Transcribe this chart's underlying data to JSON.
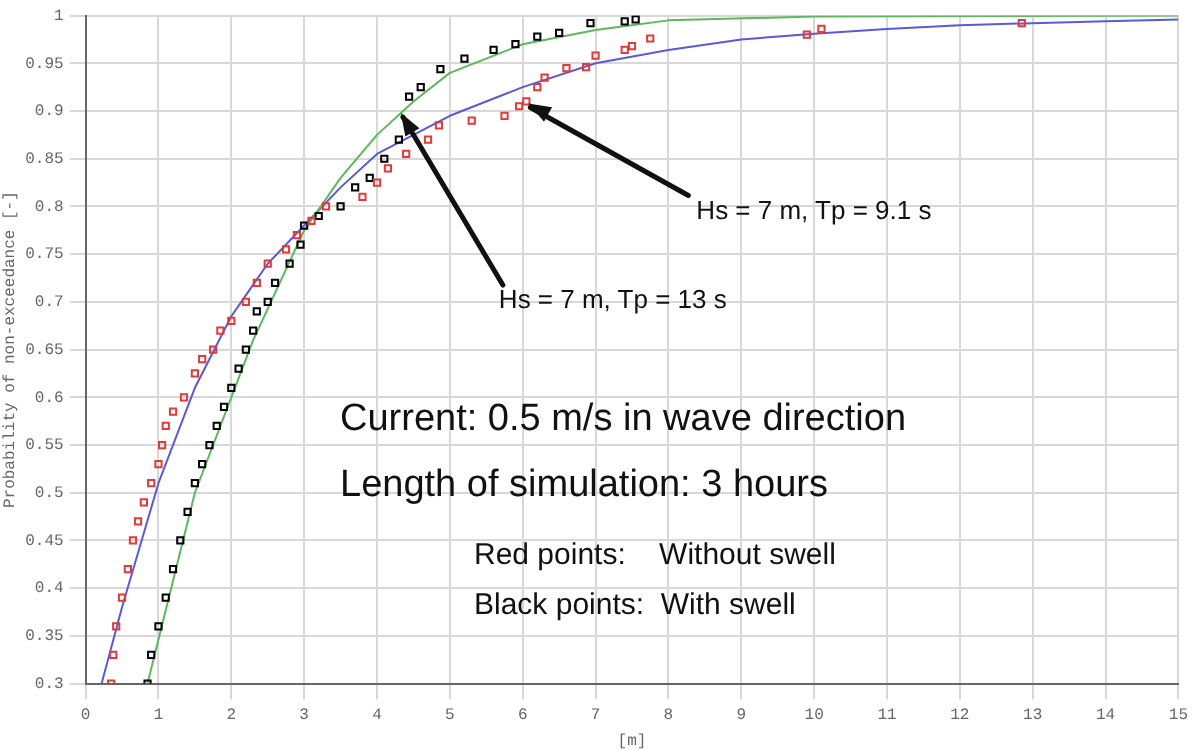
{
  "chart_data": {
    "type": "scatter",
    "xlabel": "[m]",
    "ylabel": "Probability of non-exceedance [-]",
    "xlim": [
      0,
      15
    ],
    "xticks": [
      0,
      1,
      2,
      3,
      4,
      5,
      6,
      7,
      8,
      9,
      10,
      11,
      12,
      13,
      14,
      15
    ],
    "ylim": [
      0.3,
      1
    ],
    "yticks": [
      0.3,
      0.35,
      0.4,
      0.45,
      0.5,
      0.55,
      0.6,
      0.65,
      0.7,
      0.75,
      0.8,
      0.85,
      0.9,
      0.95,
      1
    ],
    "grid": true,
    "marker": "square",
    "series": [
      {
        "color": "#e03a3a",
        "x": [
          0.35,
          0.38,
          0.42,
          0.5,
          0.58,
          0.65,
          0.72,
          0.8,
          0.9,
          1.0,
          1.05,
          1.1,
          1.2,
          1.35,
          1.5,
          1.6,
          1.75,
          1.85,
          2.0,
          2.2,
          2.35,
          2.5,
          2.75,
          2.9,
          3.1,
          3.3,
          3.8,
          4.0,
          4.15,
          4.4,
          4.7,
          4.85,
          5.3,
          5.75,
          5.95,
          6.05,
          6.2,
          6.3,
          6.6,
          6.87,
          7.0,
          7.4,
          7.5,
          7.75,
          9.9,
          10.1,
          12.85
        ],
        "values": [
          0.3,
          0.33,
          0.36,
          0.39,
          0.42,
          0.45,
          0.47,
          0.49,
          0.51,
          0.53,
          0.55,
          0.57,
          0.585,
          0.6,
          0.625,
          0.64,
          0.65,
          0.67,
          0.68,
          0.7,
          0.72,
          0.74,
          0.755,
          0.77,
          0.785,
          0.8,
          0.81,
          0.825,
          0.84,
          0.855,
          0.87,
          0.885,
          0.89,
          0.895,
          0.905,
          0.91,
          0.925,
          0.935,
          0.945,
          0.946,
          0.958,
          0.964,
          0.968,
          0.976,
          0.98,
          0.986,
          0.992
        ]
      },
      {
        "color": "#000000",
        "x": [
          0.85,
          0.9,
          1.0,
          1.1,
          1.2,
          1.3,
          1.4,
          1.5,
          1.6,
          1.7,
          1.8,
          1.9,
          2.0,
          2.1,
          2.2,
          2.3,
          2.35,
          2.5,
          2.6,
          2.8,
          2.95,
          3.0,
          3.2,
          3.5,
          3.7,
          3.9,
          4.1,
          4.3,
          4.35,
          4.44,
          4.6,
          4.87,
          5.2,
          5.6,
          5.9,
          6.2,
          6.5,
          6.93,
          7.4,
          7.55
        ],
        "values": [
          0.3,
          0.33,
          0.36,
          0.39,
          0.42,
          0.45,
          0.48,
          0.51,
          0.53,
          0.55,
          0.57,
          0.59,
          0.61,
          0.63,
          0.65,
          0.67,
          0.69,
          0.7,
          0.72,
          0.74,
          0.76,
          0.78,
          0.79,
          0.8,
          0.82,
          0.83,
          0.85,
          0.87,
          null,
          0.915,
          0.925,
          0.944,
          0.955,
          0.964,
          0.97,
          0.978,
          0.982,
          0.992,
          0.994,
          0.996
        ]
      },
      {
        "type": "line",
        "marker": "none",
        "color": "#5cb85c",
        "x": [
          0.85,
          1.5,
          2.3,
          3,
          3.5,
          4,
          4.5,
          5,
          6,
          7,
          8,
          10,
          15
        ],
        "values": [
          0.3,
          0.5,
          0.66,
          0.775,
          0.83,
          0.875,
          0.91,
          0.94,
          0.97,
          0.985,
          0.995,
          0.999,
          1
        ]
      },
      {
        "type": "line",
        "marker": "none",
        "color": "#5a5ad8",
        "x": [
          0.22,
          0.5,
          1,
          1.5,
          2,
          2.5,
          3,
          3.5,
          4,
          4.5,
          5,
          6,
          7,
          8,
          9,
          10,
          11,
          12,
          13,
          14,
          15
        ],
        "values": [
          0.3,
          0.38,
          0.51,
          0.61,
          0.685,
          0.74,
          0.78,
          0.82,
          0.855,
          0.875,
          0.895,
          0.925,
          0.95,
          0.964,
          0.975,
          0.981,
          0.986,
          0.99,
          0.992,
          0.994,
          0.996
        ]
      }
    ],
    "annotations": [
      {
        "text": "Hs = 7 m, Tp = 9.1 s",
        "x": 6.05,
        "y": 0.91
      },
      {
        "text": "Hs = 7 m, Tp = 13 s",
        "x": 4.3,
        "y": 0.9
      },
      "Current: 0.5 m/s in wave direction",
      "Length of simulation: 3 hours",
      "Red points:    Without swell",
      "Black points:  With swell"
    ]
  }
}
